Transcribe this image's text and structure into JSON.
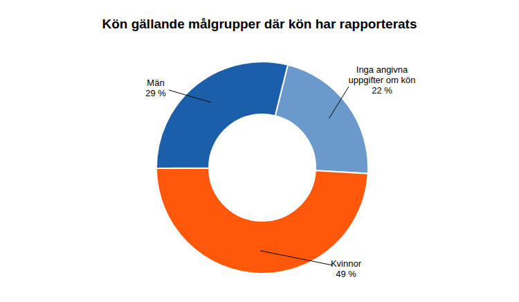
{
  "chart_data": {
    "type": "pie",
    "title": "Kön gällande målgrupper där kön har rapporterats",
    "categories": [
      "Inga angivna uppgifter om kön",
      "Kvinnor",
      "Män"
    ],
    "values": [
      22,
      49,
      29
    ],
    "value_labels": [
      "22 %",
      "49 %",
      "29 %"
    ],
    "colors": [
      "#6a99cb",
      "#ff5808",
      "#1b5fab"
    ],
    "data_labels": true
  }
}
